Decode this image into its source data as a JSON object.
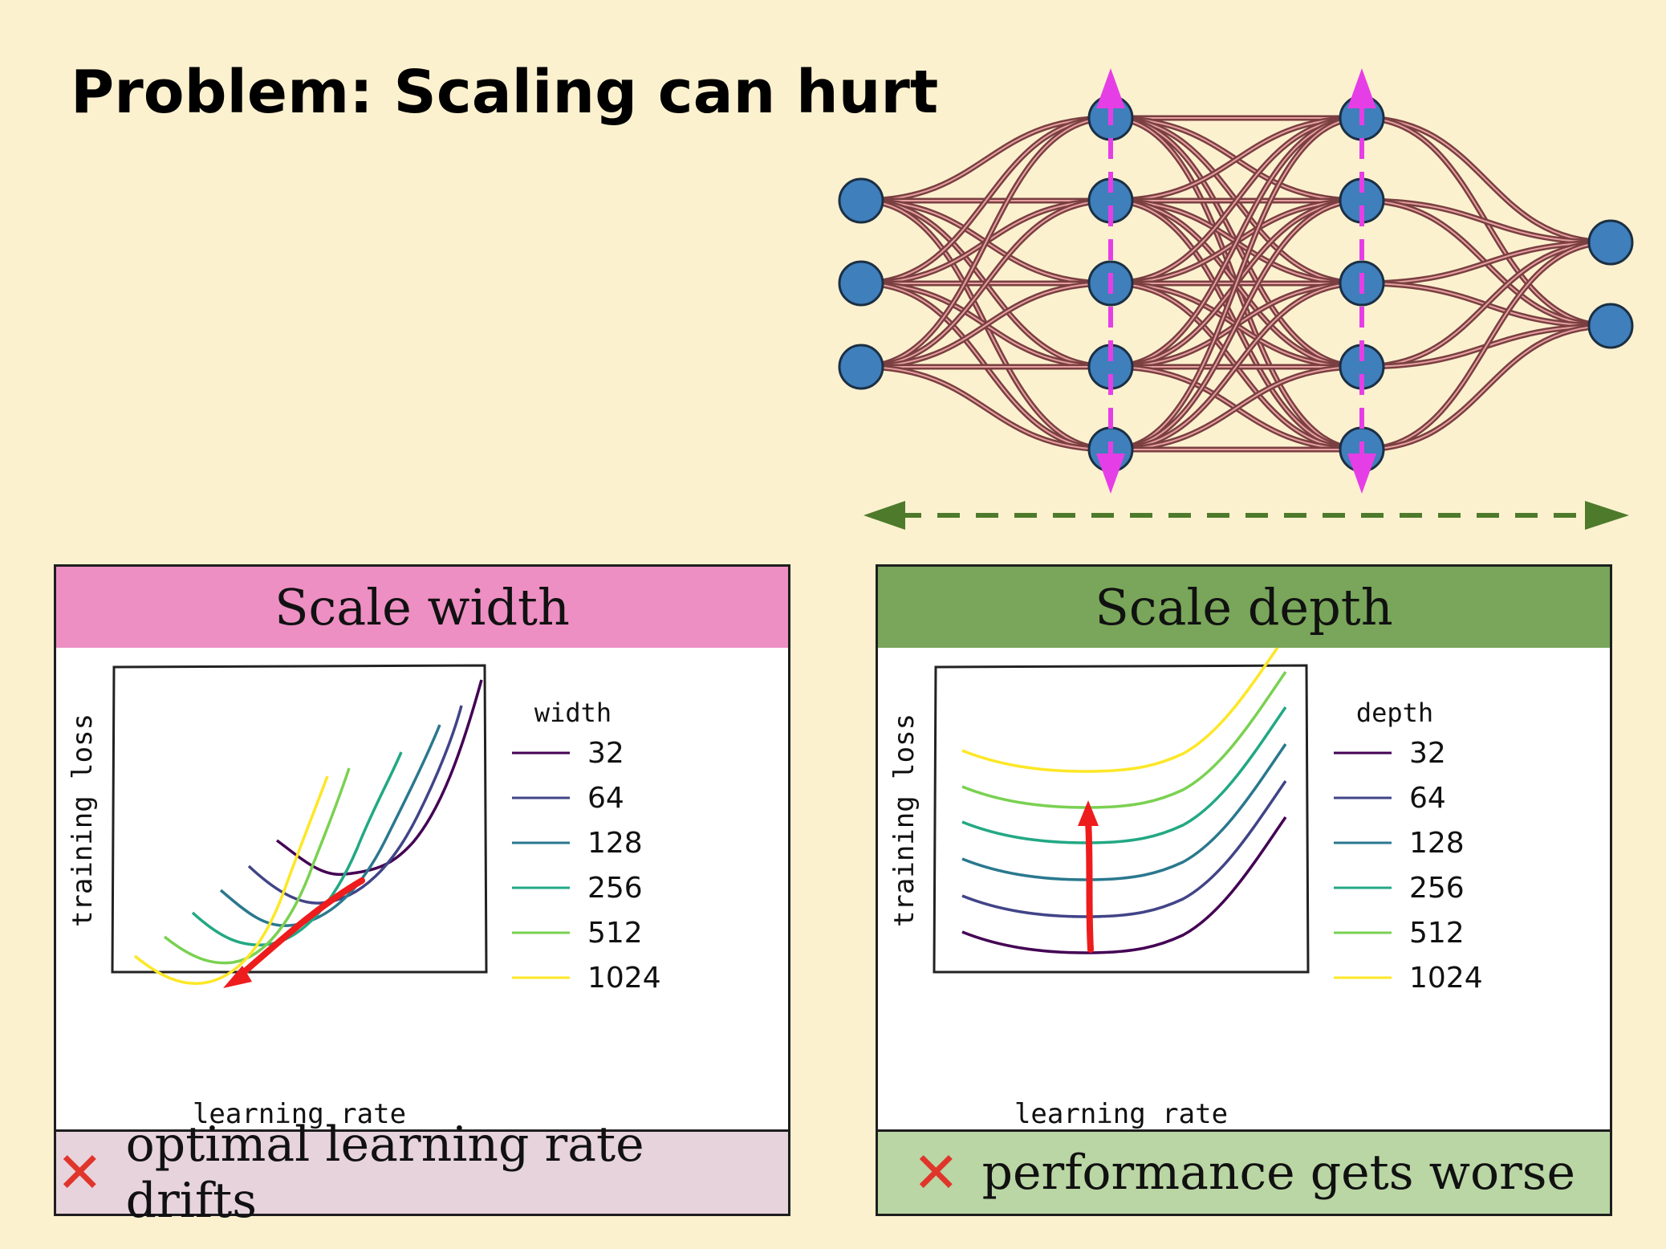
{
  "slide": {
    "title": "Problem: Scaling can hurt"
  },
  "colors": {
    "background": "#fcf1cf",
    "node": "#3f7fbb",
    "edge": "#7a3f41",
    "width_arrow": "#e63ee6",
    "depth_arrow": "#4e7a2b",
    "width_header": "#ed8fc3",
    "depth_header": "#79a65a",
    "width_footer": "#e7d3dc",
    "depth_footer": "#b9d6a4",
    "red_arrow": "#ee1c1c",
    "series": [
      "#440154",
      "#414487",
      "#2a788e",
      "#22a884",
      "#7ad151",
      "#fde725"
    ]
  },
  "panels": {
    "width": {
      "header": "Scale width",
      "footer_icon": "cross-mark-icon",
      "footer": "optimal learning rate drifts",
      "xlabel": "learning rate",
      "ylabel": "training loss",
      "legend_title": "width",
      "legend": [
        "32",
        "64",
        "128",
        "256",
        "512",
        "1024"
      ]
    },
    "depth": {
      "header": "Scale depth",
      "footer_icon": "cross-mark-icon",
      "footer": "performance gets worse",
      "xlabel": "learning rate",
      "ylabel": "training loss",
      "legend_title": "depth",
      "legend": [
        "32",
        "64",
        "128",
        "256",
        "512",
        "1024"
      ]
    }
  },
  "chart_data": [
    {
      "type": "line",
      "title": "",
      "xlabel": "learning rate",
      "ylabel": "training loss",
      "legend_title": "width",
      "legend_placement": "right",
      "grid": false,
      "note": "qualitative sketch, no tick values",
      "series": [
        {
          "name": "32",
          "optimum_lr": 0.55,
          "min_loss": 0.3
        },
        {
          "name": "64",
          "optimum_lr": 0.48,
          "min_loss": 0.24
        },
        {
          "name": "128",
          "optimum_lr": 0.4,
          "min_loss": 0.18
        },
        {
          "name": "256",
          "optimum_lr": 0.32,
          "min_loss": 0.12
        },
        {
          "name": "512",
          "optimum_lr": 0.25,
          "min_loss": 0.08
        },
        {
          "name": "1024",
          "optimum_lr": 0.2,
          "min_loss": 0.05
        }
      ],
      "annotation": "red arrow showing optimum shifting toward smaller learning rate"
    },
    {
      "type": "line",
      "title": "",
      "xlabel": "learning rate",
      "ylabel": "training loss",
      "legend_title": "depth",
      "legend_placement": "right",
      "grid": false,
      "note": "qualitative sketch, no tick values",
      "series": [
        {
          "name": "32",
          "optimum_lr": 0.3,
          "min_loss": 0.05
        },
        {
          "name": "64",
          "optimum_lr": 0.3,
          "min_loss": 0.16
        },
        {
          "name": "128",
          "optimum_lr": 0.3,
          "min_loss": 0.27
        },
        {
          "name": "256",
          "optimum_lr": 0.3,
          "min_loss": 0.38
        },
        {
          "name": "512",
          "optimum_lr": 0.3,
          "min_loss": 0.49
        },
        {
          "name": "1024",
          "optimum_lr": 0.3,
          "min_loss": 0.6
        }
      ],
      "annotation": "red arrow pointing upward: loss increases at fixed optimum"
    }
  ]
}
